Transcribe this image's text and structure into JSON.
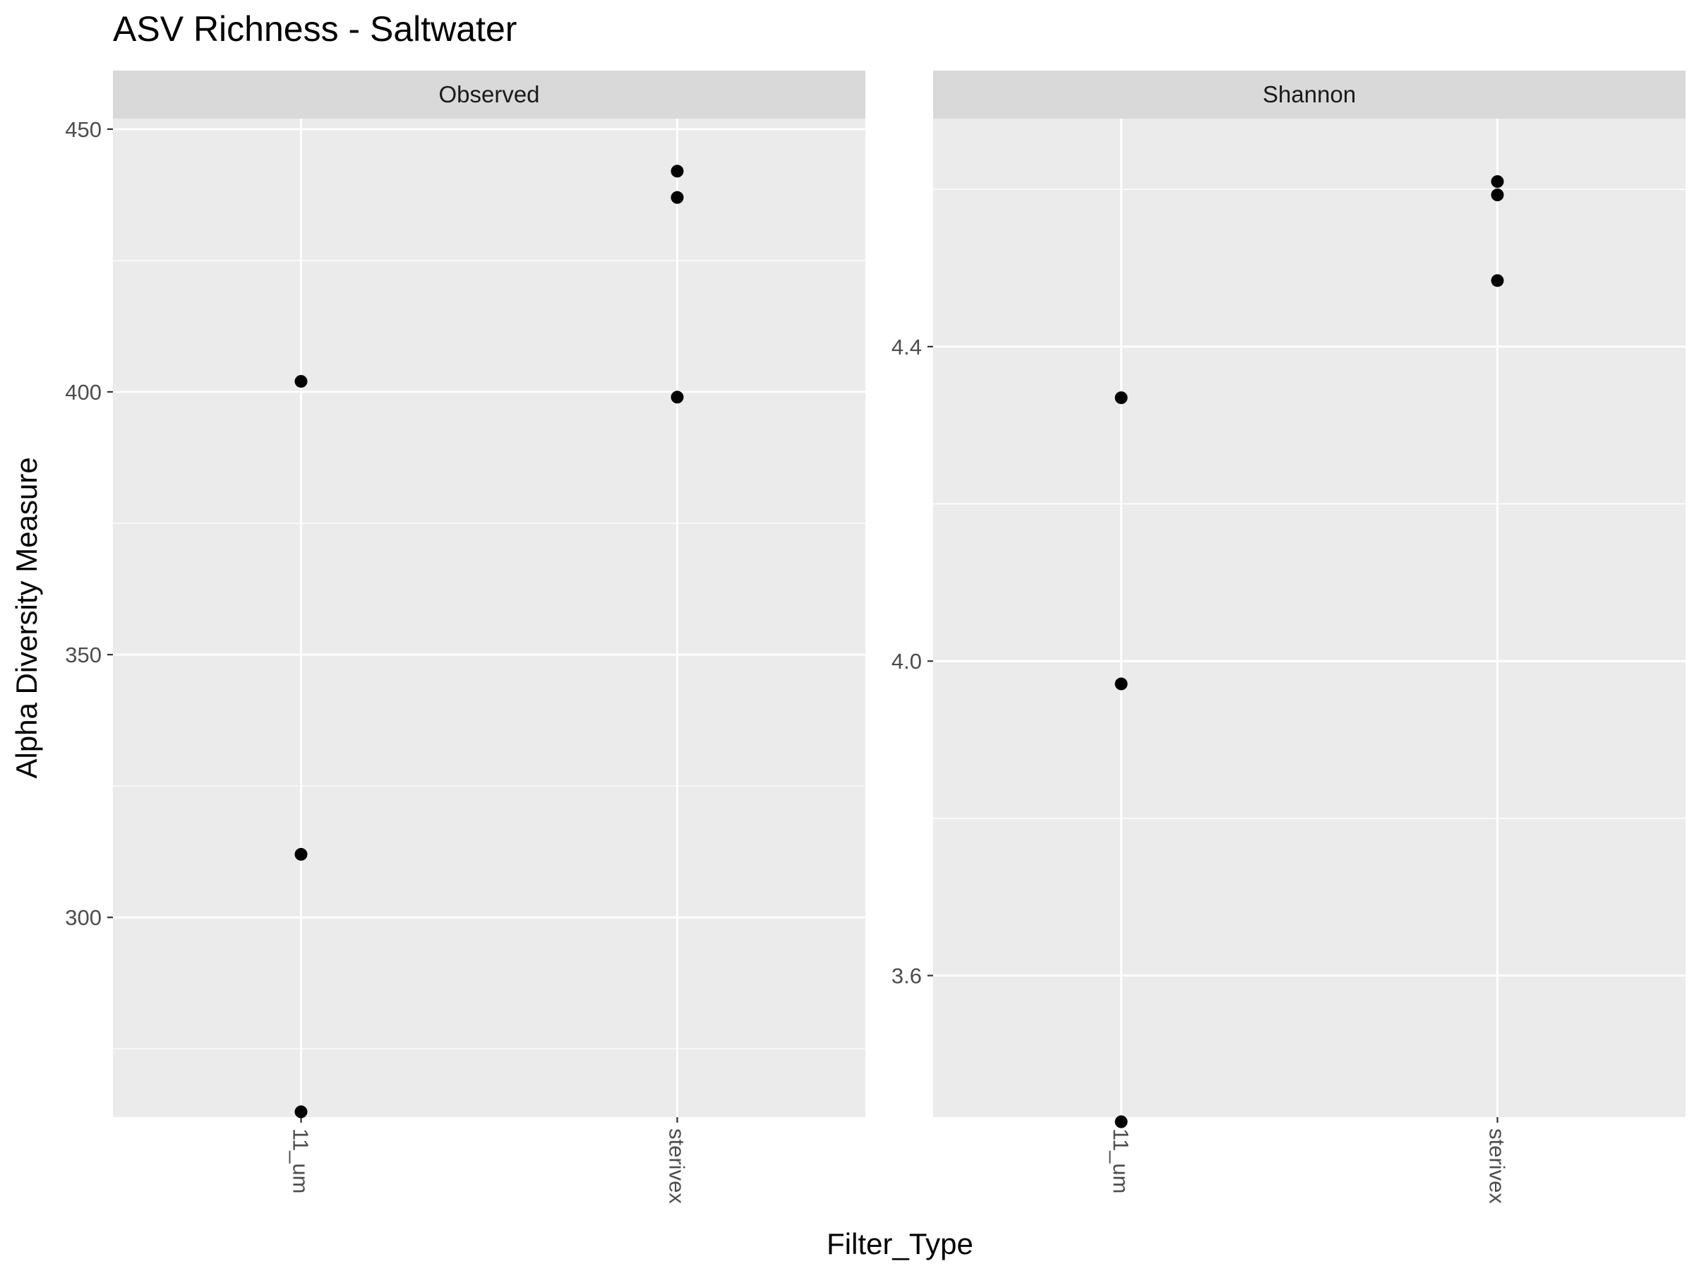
{
  "title": "ASV Richness - Saltwater",
  "xlabel": "Filter_Type",
  "ylabel": "Alpha Diversity Measure",
  "colors": {
    "panel_bg": "#ebebeb",
    "strip_bg": "#d9d9d9",
    "grid": "#ffffff",
    "point": "#000000",
    "tick_text": "#4d4d4d",
    "text": "#000000"
  },
  "chart_data": [
    {
      "type": "scatter",
      "facet": "Observed",
      "categories": [
        "11_um",
        "sterivex"
      ],
      "ylim": [
        262,
        452
      ],
      "yticks": [
        300,
        350,
        400,
        450
      ],
      "yticks_minor": [
        275,
        325,
        375,
        425
      ],
      "points": [
        {
          "x": "11_um",
          "y": 402
        },
        {
          "x": "11_um",
          "y": 312
        },
        {
          "x": "11_um",
          "y": 263
        },
        {
          "x": "sterivex",
          "y": 442
        },
        {
          "x": "sterivex",
          "y": 437
        },
        {
          "x": "sterivex",
          "y": 399
        }
      ]
    },
    {
      "type": "scatter",
      "facet": "Shannon",
      "categories": [
        "11_um",
        "sterivex"
      ],
      "ylim": [
        3.42,
        4.69
      ],
      "yticks": [
        "3.6",
        "4.0",
        "4.4"
      ],
      "yticks_minor": [
        3.4,
        3.8,
        4.2,
        4.6
      ],
      "points": [
        {
          "x": "11_um",
          "y": 4.335
        },
        {
          "x": "11_um",
          "y": 3.971
        },
        {
          "x": "11_um",
          "y": 3.414
        },
        {
          "x": "sterivex",
          "y": 4.61
        },
        {
          "x": "sterivex",
          "y": 4.593
        },
        {
          "x": "sterivex",
          "y": 4.484
        }
      ]
    }
  ]
}
